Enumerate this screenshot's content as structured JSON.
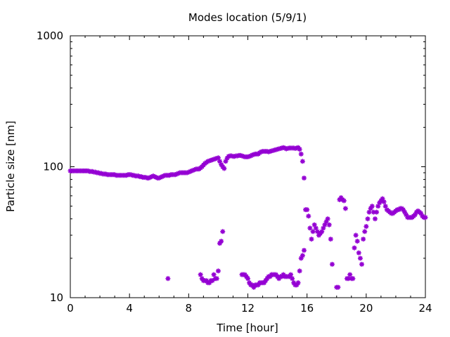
{
  "chart_data": {
    "type": "scatter",
    "title": "Modes location (5/9/1)",
    "xlabel": "Time [hour]",
    "ylabel": "Particle size [nm]",
    "xlim": [
      0,
      24
    ],
    "ylim": [
      10,
      1000
    ],
    "y_scale": "log",
    "x_ticks": [
      0,
      4,
      8,
      12,
      16,
      20,
      24
    ],
    "x_tick_labels": [
      "0",
      "4",
      "8",
      "12",
      "16",
      "20",
      "24"
    ],
    "y_ticks": [
      10,
      100,
      1000
    ],
    "y_tick_labels": [
      "10",
      "100",
      "1000"
    ],
    "grid": false,
    "marker": "asterisk",
    "series": [
      {
        "color": "#9400d3",
        "points": [
          [
            0.0,
            93
          ],
          [
            0.1,
            93
          ],
          [
            0.2,
            93
          ],
          [
            0.3,
            93
          ],
          [
            0.4,
            93
          ],
          [
            0.5,
            93
          ],
          [
            0.6,
            93
          ],
          [
            0.7,
            93
          ],
          [
            0.8,
            93
          ],
          [
            0.9,
            93
          ],
          [
            1.0,
            93
          ],
          [
            1.1,
            93
          ],
          [
            1.2,
            93
          ],
          [
            1.3,
            92
          ],
          [
            1.4,
            92
          ],
          [
            1.5,
            92
          ],
          [
            1.6,
            91
          ],
          [
            1.7,
            91
          ],
          [
            1.8,
            90
          ],
          [
            1.9,
            90
          ],
          [
            2.0,
            89
          ],
          [
            2.1,
            89
          ],
          [
            2.2,
            88
          ],
          [
            2.3,
            88
          ],
          [
            2.4,
            88
          ],
          [
            2.5,
            87
          ],
          [
            2.6,
            87
          ],
          [
            2.7,
            87
          ],
          [
            2.8,
            87
          ],
          [
            2.9,
            87
          ],
          [
            3.0,
            87
          ],
          [
            3.1,
            86
          ],
          [
            3.2,
            86
          ],
          [
            3.3,
            86
          ],
          [
            3.4,
            86
          ],
          [
            3.5,
            86
          ],
          [
            3.6,
            86
          ],
          [
            3.7,
            86
          ],
          [
            3.8,
            86
          ],
          [
            3.9,
            87
          ],
          [
            4.0,
            87
          ],
          [
            4.1,
            87
          ],
          [
            4.2,
            86
          ],
          [
            4.3,
            86
          ],
          [
            4.4,
            85
          ],
          [
            4.5,
            85
          ],
          [
            4.6,
            85
          ],
          [
            4.7,
            84
          ],
          [
            4.8,
            84
          ],
          [
            4.9,
            83
          ],
          [
            5.0,
            83
          ],
          [
            5.1,
            83
          ],
          [
            5.2,
            82
          ],
          [
            5.3,
            82
          ],
          [
            5.4,
            83
          ],
          [
            5.5,
            84
          ],
          [
            5.6,
            85
          ],
          [
            5.7,
            84
          ],
          [
            5.8,
            83
          ],
          [
            5.9,
            82
          ],
          [
            6.0,
            82
          ],
          [
            6.1,
            83
          ],
          [
            6.2,
            84
          ],
          [
            6.3,
            85
          ],
          [
            6.4,
            86
          ],
          [
            6.5,
            86
          ],
          [
            6.6,
            86
          ],
          [
            6.7,
            86
          ],
          [
            6.8,
            87
          ],
          [
            6.9,
            87
          ],
          [
            7.0,
            87
          ],
          [
            7.1,
            87
          ],
          [
            7.2,
            88
          ],
          [
            7.3,
            89
          ],
          [
            7.4,
            90
          ],
          [
            7.5,
            90
          ],
          [
            7.6,
            90
          ],
          [
            7.7,
            90
          ],
          [
            7.8,
            90
          ],
          [
            7.9,
            90
          ],
          [
            8.0,
            91
          ],
          [
            8.1,
            92
          ],
          [
            8.2,
            93
          ],
          [
            8.3,
            94
          ],
          [
            8.4,
            95
          ],
          [
            8.5,
            96
          ],
          [
            8.6,
            96
          ],
          [
            8.7,
            96
          ],
          [
            8.8,
            98
          ],
          [
            8.9,
            100
          ],
          [
            9.0,
            103
          ],
          [
            9.1,
            106
          ],
          [
            9.2,
            108
          ],
          [
            9.3,
            110
          ],
          [
            9.4,
            111
          ],
          [
            9.5,
            112
          ],
          [
            9.6,
            113
          ],
          [
            9.7,
            114
          ],
          [
            9.8,
            115
          ],
          [
            9.9,
            116
          ],
          [
            10.0,
            117
          ],
          [
            10.1,
            110
          ],
          [
            10.2,
            104
          ],
          [
            10.3,
            100
          ],
          [
            10.4,
            97
          ],
          [
            10.5,
            110
          ],
          [
            10.6,
            116
          ],
          [
            10.7,
            120
          ],
          [
            10.8,
            121
          ],
          [
            10.9,
            121
          ],
          [
            11.0,
            120
          ],
          [
            11.1,
            120
          ],
          [
            11.2,
            121
          ],
          [
            11.3,
            121
          ],
          [
            11.4,
            122
          ],
          [
            11.5,
            122
          ],
          [
            11.6,
            121
          ],
          [
            11.7,
            120
          ],
          [
            11.8,
            119
          ],
          [
            11.9,
            119
          ],
          [
            12.0,
            119
          ],
          [
            12.1,
            120
          ],
          [
            12.2,
            121
          ],
          [
            12.3,
            123
          ],
          [
            12.4,
            124
          ],
          [
            12.5,
            125
          ],
          [
            12.6,
            125
          ],
          [
            12.7,
            125
          ],
          [
            12.8,
            128
          ],
          [
            12.9,
            130
          ],
          [
            13.0,
            131
          ],
          [
            13.1,
            131
          ],
          [
            13.2,
            131
          ],
          [
            13.3,
            131
          ],
          [
            13.4,
            130
          ],
          [
            13.5,
            131
          ],
          [
            13.6,
            132
          ],
          [
            13.7,
            133
          ],
          [
            13.8,
            134
          ],
          [
            13.9,
            135
          ],
          [
            14.0,
            136
          ],
          [
            14.1,
            137
          ],
          [
            14.2,
            138
          ],
          [
            14.3,
            139
          ],
          [
            14.4,
            140
          ],
          [
            14.5,
            139
          ],
          [
            14.6,
            137
          ],
          [
            14.7,
            138
          ],
          [
            14.8,
            139
          ],
          [
            14.9,
            139
          ],
          [
            15.0,
            139
          ],
          [
            15.1,
            139
          ],
          [
            15.2,
            138
          ],
          [
            15.3,
            139
          ],
          [
            15.4,
            140
          ],
          [
            15.5,
            136
          ],
          [
            15.6,
            125
          ],
          [
            15.7,
            110
          ],
          [
            15.8,
            82
          ],
          [
            15.9,
            47
          ],
          [
            16.0,
            47
          ],
          [
            16.1,
            42
          ],
          [
            16.2,
            34
          ],
          [
            16.3,
            28
          ],
          [
            16.4,
            32
          ],
          [
            16.5,
            36
          ],
          [
            16.6,
            34
          ],
          [
            16.7,
            32
          ],
          [
            16.8,
            30
          ],
          [
            16.9,
            31
          ],
          [
            17.0,
            32
          ],
          [
            17.1,
            34
          ],
          [
            17.2,
            36
          ],
          [
            17.3,
            38
          ],
          [
            17.4,
            40
          ],
          [
            17.5,
            36
          ],
          [
            17.6,
            28
          ],
          [
            17.7,
            18
          ],
          [
            18.0,
            12
          ],
          [
            18.1,
            12
          ],
          [
            18.2,
            56
          ],
          [
            18.3,
            58
          ],
          [
            18.4,
            56
          ],
          [
            18.5,
            55
          ],
          [
            18.6,
            48
          ],
          [
            18.7,
            14
          ],
          [
            18.8,
            14
          ],
          [
            18.9,
            15
          ],
          [
            19.0,
            14
          ],
          [
            19.1,
            14
          ],
          [
            19.2,
            24
          ],
          [
            19.3,
            30
          ],
          [
            19.4,
            27
          ],
          [
            19.5,
            22
          ],
          [
            19.6,
            20
          ],
          [
            19.7,
            18
          ],
          [
            19.8,
            28
          ],
          [
            19.9,
            32
          ],
          [
            20.0,
            35
          ],
          [
            20.1,
            40
          ],
          [
            20.2,
            45
          ],
          [
            20.3,
            48
          ],
          [
            20.4,
            50
          ],
          [
            20.5,
            45
          ],
          [
            20.6,
            40
          ],
          [
            20.7,
            45
          ],
          [
            20.8,
            50
          ],
          [
            20.9,
            53
          ],
          [
            21.0,
            55
          ],
          [
            21.1,
            57
          ],
          [
            21.2,
            54
          ],
          [
            21.3,
            50
          ],
          [
            21.4,
            47
          ],
          [
            21.5,
            46
          ],
          [
            21.6,
            45
          ],
          [
            21.7,
            44
          ],
          [
            21.8,
            44
          ],
          [
            21.9,
            45
          ],
          [
            22.0,
            46
          ],
          [
            22.1,
            47
          ],
          [
            22.2,
            47
          ],
          [
            22.3,
            48
          ],
          [
            22.4,
            48
          ],
          [
            22.5,
            47
          ],
          [
            22.6,
            45
          ],
          [
            22.7,
            43
          ],
          [
            22.8,
            41
          ],
          [
            22.9,
            41
          ],
          [
            23.0,
            41
          ],
          [
            23.1,
            41
          ],
          [
            23.2,
            42
          ],
          [
            23.3,
            43
          ],
          [
            23.4,
            45
          ],
          [
            23.5,
            46
          ],
          [
            23.6,
            45
          ],
          [
            23.7,
            44
          ],
          [
            23.8,
            42
          ],
          [
            23.9,
            41
          ],
          [
            24.0,
            41
          ],
          [
            6.6,
            14
          ],
          [
            8.8,
            15
          ],
          [
            8.9,
            14
          ],
          [
            9.0,
            13.5
          ],
          [
            9.1,
            13.5
          ],
          [
            9.2,
            13.5
          ],
          [
            9.3,
            13
          ],
          [
            9.4,
            13
          ],
          [
            9.5,
            13.5
          ],
          [
            9.6,
            13.5
          ],
          [
            9.7,
            15
          ],
          [
            9.8,
            14
          ],
          [
            9.9,
            14
          ],
          [
            10.0,
            16
          ],
          [
            10.1,
            26
          ],
          [
            10.2,
            27
          ],
          [
            10.3,
            32
          ],
          [
            11.6,
            15
          ],
          [
            11.7,
            15
          ],
          [
            11.8,
            15
          ],
          [
            11.9,
            14.5
          ],
          [
            12.0,
            14
          ],
          [
            12.1,
            13
          ],
          [
            12.2,
            12.5
          ],
          [
            12.3,
            12.5
          ],
          [
            12.4,
            12
          ],
          [
            12.5,
            12.5
          ],
          [
            12.6,
            12.5
          ],
          [
            12.7,
            12.5
          ],
          [
            12.8,
            13
          ],
          [
            12.9,
            13
          ],
          [
            13.0,
            13
          ],
          [
            13.1,
            13
          ],
          [
            13.2,
            13.5
          ],
          [
            13.3,
            14
          ],
          [
            13.4,
            14.5
          ],
          [
            13.5,
            14.5
          ],
          [
            13.6,
            15
          ],
          [
            13.7,
            15
          ],
          [
            13.8,
            15
          ],
          [
            13.9,
            15
          ],
          [
            14.0,
            14.5
          ],
          [
            14.1,
            14
          ],
          [
            14.2,
            14.5
          ],
          [
            14.3,
            14.5
          ],
          [
            14.4,
            15
          ],
          [
            14.5,
            14.5
          ],
          [
            14.6,
            14.5
          ],
          [
            14.7,
            14.5
          ],
          [
            14.8,
            14.5
          ],
          [
            14.9,
            15
          ],
          [
            15.0,
            14
          ],
          [
            15.1,
            13
          ],
          [
            15.2,
            12.5
          ],
          [
            15.3,
            12.5
          ],
          [
            15.4,
            13
          ],
          [
            15.5,
            16
          ],
          [
            15.6,
            20
          ],
          [
            15.7,
            21
          ],
          [
            15.8,
            23
          ]
        ]
      }
    ]
  }
}
